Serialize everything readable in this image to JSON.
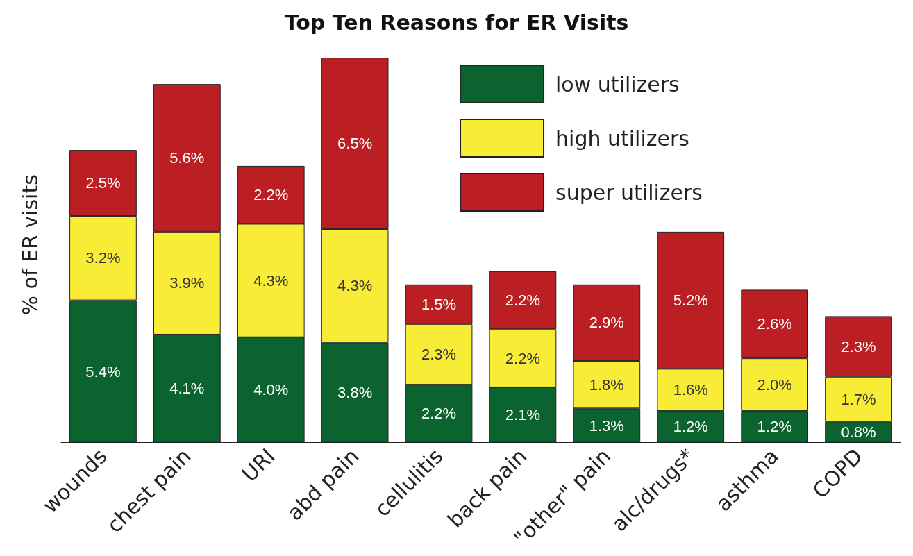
{
  "chart_data": {
    "type": "bar",
    "title": "Top Ten Reasons for ER Visits",
    "ylabel": "% of ER visits",
    "stacked": true,
    "legend": "top right",
    "grid": false,
    "categories": [
      "wounds",
      "chest pain",
      "URI",
      "abd pain",
      "cellulitis",
      "back pain",
      "\"other\" pain",
      "alc/drugs*",
      "asthma",
      "COPD"
    ],
    "series": [
      {
        "name": "low utilizers",
        "color": "#0b632f",
        "values": [
          5.4,
          4.1,
          4.0,
          3.8,
          2.2,
          2.1,
          1.3,
          1.2,
          1.2,
          0.8
        ],
        "value_labels": [
          "5.4%",
          "4.1%",
          "4.0%",
          "3.8%",
          "2.2%",
          "2.1%",
          "1.3%",
          "1.2%",
          "1.2%",
          "0.8%"
        ]
      },
      {
        "name": "high utilizers",
        "color": "#f8ec37",
        "values": [
          3.2,
          3.9,
          4.3,
          4.3,
          2.3,
          2.2,
          1.8,
          1.6,
          2.0,
          1.7
        ],
        "value_labels": [
          "3.2%",
          "3.9%",
          "4.3%",
          "4.3%",
          "2.3%",
          "2.2%",
          "1.8%",
          "1.6%",
          "2.0%",
          "1.7%"
        ]
      },
      {
        "name": "super utilizers",
        "color": "#bb1f24",
        "values": [
          2.5,
          5.6,
          2.2,
          6.5,
          1.5,
          2.2,
          2.9,
          5.2,
          2.6,
          2.3
        ],
        "value_labels": [
          "2.5%",
          "5.6%",
          "2.2%",
          "6.5%",
          "1.5%",
          "2.2%",
          "2.9%",
          "5.2%",
          "2.6%",
          "2.3%"
        ]
      }
    ]
  }
}
